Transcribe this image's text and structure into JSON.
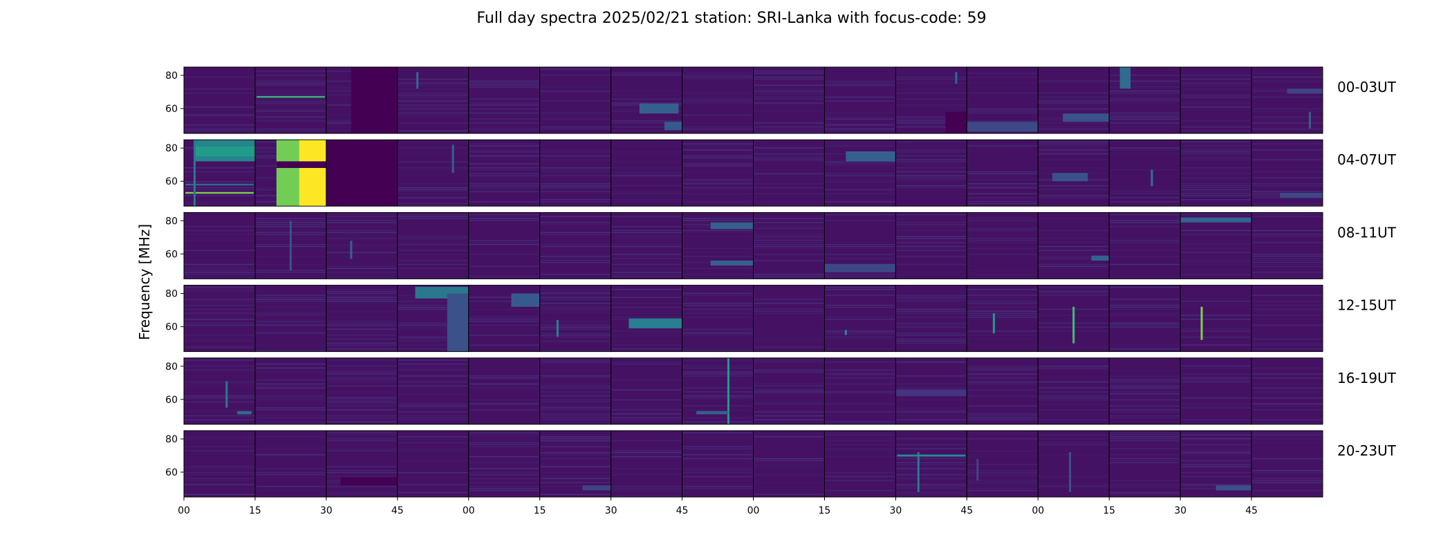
{
  "figure": {
    "title": "Full day spectra 2025/02/21 station: SRI-Lanka with focus-code: 59",
    "ylabel": "Frequency [MHz]"
  },
  "chart_data": {
    "type": "heatmap",
    "title": "Full day spectra 2025/02/21 station: SRI-Lanka with focus-code: 59",
    "ylabel": "Frequency [MHz]",
    "ylim": [
      45,
      85
    ],
    "yticks": [
      "60",
      "80"
    ],
    "xticks": [
      "00",
      "15",
      "30",
      "45",
      "00",
      "15",
      "30",
      "45",
      "00",
      "15",
      "30",
      "45",
      "00",
      "15",
      "30",
      "45"
    ],
    "rows": [
      "00-03UT",
      "04-07UT",
      "08-11UT",
      "12-15UT",
      "16-19UT",
      "20-23UT"
    ],
    "panels_per_row": 16,
    "colormap": [
      "#440154",
      "#46327e",
      "#365c8d",
      "#277f8e",
      "#1fa187",
      "#4ac16d",
      "#a0da39",
      "#fde725"
    ],
    "background_level": 0.05,
    "features": [
      {
        "row": 0,
        "panel": 1,
        "kind": "hline",
        "freq": 67,
        "level": 0.65
      },
      {
        "row": 0,
        "panel": 2,
        "kind": "block",
        "t": [
          0.35,
          1.0
        ],
        "f": [
          45,
          85
        ],
        "level": 0.0
      },
      {
        "row": 0,
        "panel": 3,
        "kind": "vline",
        "t": 0.28,
        "f": [
          72,
          82
        ],
        "level": 0.35
      },
      {
        "row": 0,
        "panel": 6,
        "kind": "block",
        "t": [
          0.4,
          0.95
        ],
        "f": [
          57,
          63
        ],
        "level": 0.3
      },
      {
        "row": 0,
        "panel": 6,
        "kind": "block",
        "t": [
          0.75,
          1.0
        ],
        "f": [
          47,
          52
        ],
        "level": 0.28
      },
      {
        "row": 0,
        "panel": 10,
        "kind": "vline",
        "t": 0.85,
        "f": [
          75,
          82
        ],
        "level": 0.35
      },
      {
        "row": 0,
        "panel": 10,
        "kind": "block",
        "t": [
          0.7,
          1.0
        ],
        "f": [
          45,
          58
        ],
        "level": 0.0
      },
      {
        "row": 0,
        "panel": 11,
        "kind": "block",
        "t": [
          0.0,
          1.0
        ],
        "f": [
          46,
          52
        ],
        "level": 0.22
      },
      {
        "row": 0,
        "panel": 12,
        "kind": "block",
        "t": [
          0.35,
          1.0
        ],
        "f": [
          52,
          57
        ],
        "level": 0.25
      },
      {
        "row": 0,
        "panel": 13,
        "kind": "block",
        "t": [
          0.15,
          0.3
        ],
        "f": [
          72,
          85
        ],
        "level": 0.35
      },
      {
        "row": 0,
        "panel": 15,
        "kind": "block",
        "t": [
          0.5,
          1.0
        ],
        "f": [
          69,
          72
        ],
        "level": 0.2
      },
      {
        "row": 0,
        "panel": 15,
        "kind": "vline",
        "t": 0.82,
        "f": [
          48,
          58
        ],
        "level": 0.3
      },
      {
        "row": 1,
        "panel": 0,
        "kind": "block",
        "t": [
          0.15,
          1.0
        ],
        "f": [
          72,
          85
        ],
        "level": 0.45
      },
      {
        "row": 1,
        "panel": 0,
        "kind": "block",
        "t": [
          0.15,
          1.0
        ],
        "f": [
          75,
          81
        ],
        "level": 0.55
      },
      {
        "row": 1,
        "panel": 0,
        "kind": "hline",
        "freq": 53,
        "level": 0.8
      },
      {
        "row": 1,
        "panel": 0,
        "kind": "hline",
        "freq": 58,
        "level": 0.35
      },
      {
        "row": 1,
        "panel": 0,
        "kind": "vline",
        "t": 0.15,
        "f": [
          45,
          85
        ],
        "level": 0.4
      },
      {
        "row": 1,
        "panel": 1,
        "kind": "block",
        "t": [
          0.3,
          1.0
        ],
        "f": [
          45,
          85
        ],
        "level": 0.78
      },
      {
        "row": 1,
        "panel": 1,
        "kind": "block",
        "t": [
          0.62,
          1.0
        ],
        "f": [
          45,
          85
        ],
        "level": 1.0
      },
      {
        "row": 1,
        "panel": 1,
        "kind": "block",
        "t": [
          0.3,
          1.0
        ],
        "f": [
          68,
          72
        ],
        "level": 0.0
      },
      {
        "row": 1,
        "panel": 2,
        "kind": "block",
        "t": [
          0.0,
          1.0
        ],
        "f": [
          45,
          85
        ],
        "level": 0.0
      },
      {
        "row": 1,
        "panel": 3,
        "kind": "vline",
        "t": 0.78,
        "f": [
          65,
          82
        ],
        "level": 0.3
      },
      {
        "row": 1,
        "panel": 9,
        "kind": "block",
        "t": [
          0.3,
          1.0
        ],
        "f": [
          72,
          78
        ],
        "level": 0.3
      },
      {
        "row": 1,
        "panel": 12,
        "kind": "block",
        "t": [
          0.2,
          0.7
        ],
        "f": [
          60,
          65
        ],
        "level": 0.25
      },
      {
        "row": 1,
        "panel": 13,
        "kind": "vline",
        "t": 0.6,
        "f": [
          57,
          67
        ],
        "level": 0.38
      },
      {
        "row": 1,
        "panel": 15,
        "kind": "block",
        "t": [
          0.4,
          1.0
        ],
        "f": [
          50,
          53
        ],
        "level": 0.22
      },
      {
        "row": 2,
        "panel": 1,
        "kind": "vline",
        "t": 0.5,
        "f": [
          50,
          80
        ],
        "level": 0.25
      },
      {
        "row": 2,
        "panel": 2,
        "kind": "vline",
        "t": 0.35,
        "f": [
          57,
          68
        ],
        "level": 0.3
      },
      {
        "row": 2,
        "panel": 7,
        "kind": "block",
        "t": [
          0.4,
          1.0
        ],
        "f": [
          75,
          79
        ],
        "level": 0.3
      },
      {
        "row": 2,
        "panel": 7,
        "kind": "block",
        "t": [
          0.4,
          1.0
        ],
        "f": [
          53,
          56
        ],
        "level": 0.3
      },
      {
        "row": 2,
        "panel": 9,
        "kind": "block",
        "t": [
          0.0,
          1.0
        ],
        "f": [
          49,
          54
        ],
        "level": 0.22
      },
      {
        "row": 2,
        "panel": 12,
        "kind": "block",
        "t": [
          0.75,
          1.0
        ],
        "f": [
          56,
          59
        ],
        "level": 0.32
      },
      {
        "row": 2,
        "panel": 14,
        "kind": "block",
        "t": [
          0.0,
          1.0
        ],
        "f": [
          79,
          82
        ],
        "level": 0.32
      },
      {
        "row": 3,
        "panel": 3,
        "kind": "block",
        "t": [
          0.25,
          1.0
        ],
        "f": [
          77,
          84
        ],
        "level": 0.4
      },
      {
        "row": 3,
        "panel": 3,
        "kind": "block",
        "t": [
          0.7,
          1.0
        ],
        "f": [
          45,
          80
        ],
        "level": 0.25
      },
      {
        "row": 3,
        "panel": 4,
        "kind": "block",
        "t": [
          0.6,
          1.0
        ],
        "f": [
          72,
          80
        ],
        "level": 0.28
      },
      {
        "row": 3,
        "panel": 5,
        "kind": "vline",
        "t": 0.25,
        "f": [
          54,
          64
        ],
        "level": 0.45
      },
      {
        "row": 3,
        "panel": 6,
        "kind": "block",
        "t": [
          0.25,
          1.0
        ],
        "f": [
          59,
          65
        ],
        "level": 0.42
      },
      {
        "row": 3,
        "panel": 9,
        "kind": "vline",
        "t": 0.3,
        "f": [
          55,
          58
        ],
        "level": 0.5
      },
      {
        "row": 3,
        "panel": 11,
        "kind": "vline",
        "t": 0.38,
        "f": [
          56,
          68
        ],
        "level": 0.55
      },
      {
        "row": 3,
        "panel": 12,
        "kind": "vline",
        "t": 0.5,
        "f": [
          50,
          72
        ],
        "level": 0.7
      },
      {
        "row": 3,
        "panel": 14,
        "kind": "vline",
        "t": 0.3,
        "f": [
          52,
          72
        ],
        "level": 0.8
      },
      {
        "row": 4,
        "panel": 0,
        "kind": "vline",
        "t": 0.6,
        "f": [
          55,
          71
        ],
        "level": 0.4
      },
      {
        "row": 4,
        "panel": 0,
        "kind": "block",
        "t": [
          0.75,
          0.95
        ],
        "f": [
          51,
          53
        ],
        "level": 0.35
      },
      {
        "row": 4,
        "panel": 7,
        "kind": "vline",
        "t": 0.65,
        "f": [
          45,
          85
        ],
        "level": 0.55
      },
      {
        "row": 4,
        "panel": 7,
        "kind": "block",
        "t": [
          0.2,
          0.65
        ],
        "f": [
          51,
          53
        ],
        "level": 0.3
      },
      {
        "row": 4,
        "panel": 10,
        "kind": "block",
        "t": [
          0.0,
          1.0
        ],
        "f": [
          62,
          66
        ],
        "level": 0.15
      },
      {
        "row": 5,
        "panel": 2,
        "kind": "block",
        "t": [
          0.2,
          1.0
        ],
        "f": [
          52,
          57
        ],
        "level": 0.0
      },
      {
        "row": 5,
        "panel": 5,
        "kind": "block",
        "t": [
          0.6,
          1.0
        ],
        "f": [
          49,
          52
        ],
        "level": 0.2
      },
      {
        "row": 5,
        "panel": 10,
        "kind": "vline",
        "t": 0.32,
        "f": [
          48,
          72
        ],
        "level": 0.4
      },
      {
        "row": 5,
        "panel": 10,
        "kind": "hline",
        "freq": 70,
        "level": 0.5
      },
      {
        "row": 5,
        "panel": 11,
        "kind": "vline",
        "t": 0.15,
        "f": [
          55,
          68
        ],
        "level": 0.2
      },
      {
        "row": 5,
        "panel": 12,
        "kind": "vline",
        "t": 0.45,
        "f": [
          48,
          72
        ],
        "level": 0.25
      },
      {
        "row": 5,
        "panel": 14,
        "kind": "block",
        "t": [
          0.5,
          1.0
        ],
        "f": [
          49,
          52
        ],
        "level": 0.25
      }
    ]
  }
}
